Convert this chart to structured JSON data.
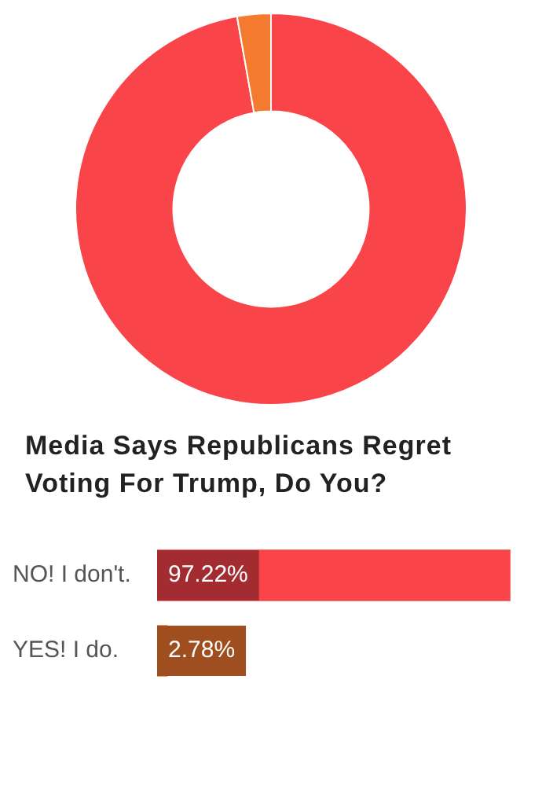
{
  "chart_data": [
    {
      "type": "donut",
      "categories": [
        null,
        null
      ],
      "values": [
        97.22,
        2.78
      ],
      "colors": [
        "#f94449",
        "#f47a30"
      ],
      "legend": false
    },
    {
      "type": "bar",
      "orientation": "horizontal",
      "title": "Media Says Republicans Regret Voting For Trump, Do You?",
      "categories": [
        "NO! I don't.",
        "YES! I do."
      ],
      "values": [
        97.22,
        2.78
      ],
      "colors": [
        "#f94449",
        "#f47a30"
      ],
      "value_labels": [
        "97.22%",
        "2.78%"
      ],
      "tick_labels": "y",
      "grid": false,
      "legend": false
    }
  ]
}
